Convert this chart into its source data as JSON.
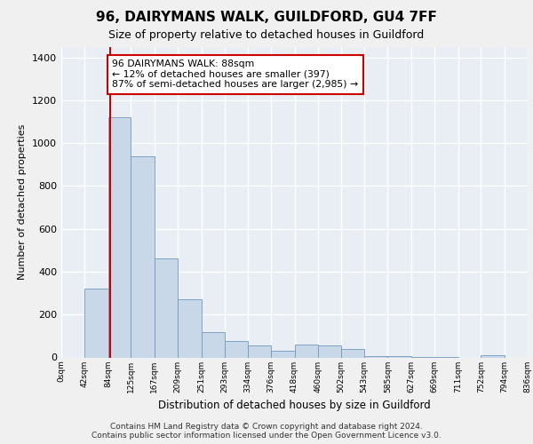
{
  "title1": "96, DAIRYMANS WALK, GUILDFORD, GU4 7FF",
  "title2": "Size of property relative to detached houses in Guildford",
  "xlabel": "Distribution of detached houses by size in Guildford",
  "ylabel": "Number of detached properties",
  "bins": [
    0,
    42,
    84,
    125,
    167,
    209,
    251,
    293,
    334,
    376,
    418,
    460,
    502,
    543,
    585,
    627,
    669,
    711,
    752,
    794,
    836
  ],
  "counts": [
    0,
    320,
    1120,
    940,
    460,
    270,
    120,
    75,
    55,
    30,
    60,
    55,
    40,
    8,
    5,
    3,
    2,
    0,
    10,
    0,
    0
  ],
  "bar_color": "#c8d8e8",
  "bar_edge_color": "#7099bb",
  "property_line_x": 88,
  "property_line_color": "#cc0000",
  "annotation_text": "96 DAIRYMANS WALK: 88sqm\n← 12% of detached houses are smaller (397)\n87% of semi-detached houses are larger (2,985) →",
  "annotation_box_color": "#ffffff",
  "annotation_box_edge": "#cc0000",
  "ylim": [
    0,
    1450
  ],
  "yticks": [
    0,
    200,
    400,
    600,
    800,
    1000,
    1200,
    1400
  ],
  "footnote1": "Contains HM Land Registry data © Crown copyright and database right 2024.",
  "footnote2": "Contains public sector information licensed under the Open Government Licence v3.0.",
  "background_color": "#e8eef4",
  "grid_color": "#ffffff",
  "fig_background": "#f0f0f0",
  "tick_labels": [
    "0sqm",
    "42sqm",
    "84sqm",
    "125sqm",
    "167sqm",
    "209sqm",
    "251sqm",
    "293sqm",
    "334sqm",
    "376sqm",
    "418sqm",
    "460sqm",
    "502sqm",
    "543sqm",
    "585sqm",
    "627sqm",
    "669sqm",
    "711sqm",
    "752sqm",
    "794sqm",
    "836sqm"
  ]
}
